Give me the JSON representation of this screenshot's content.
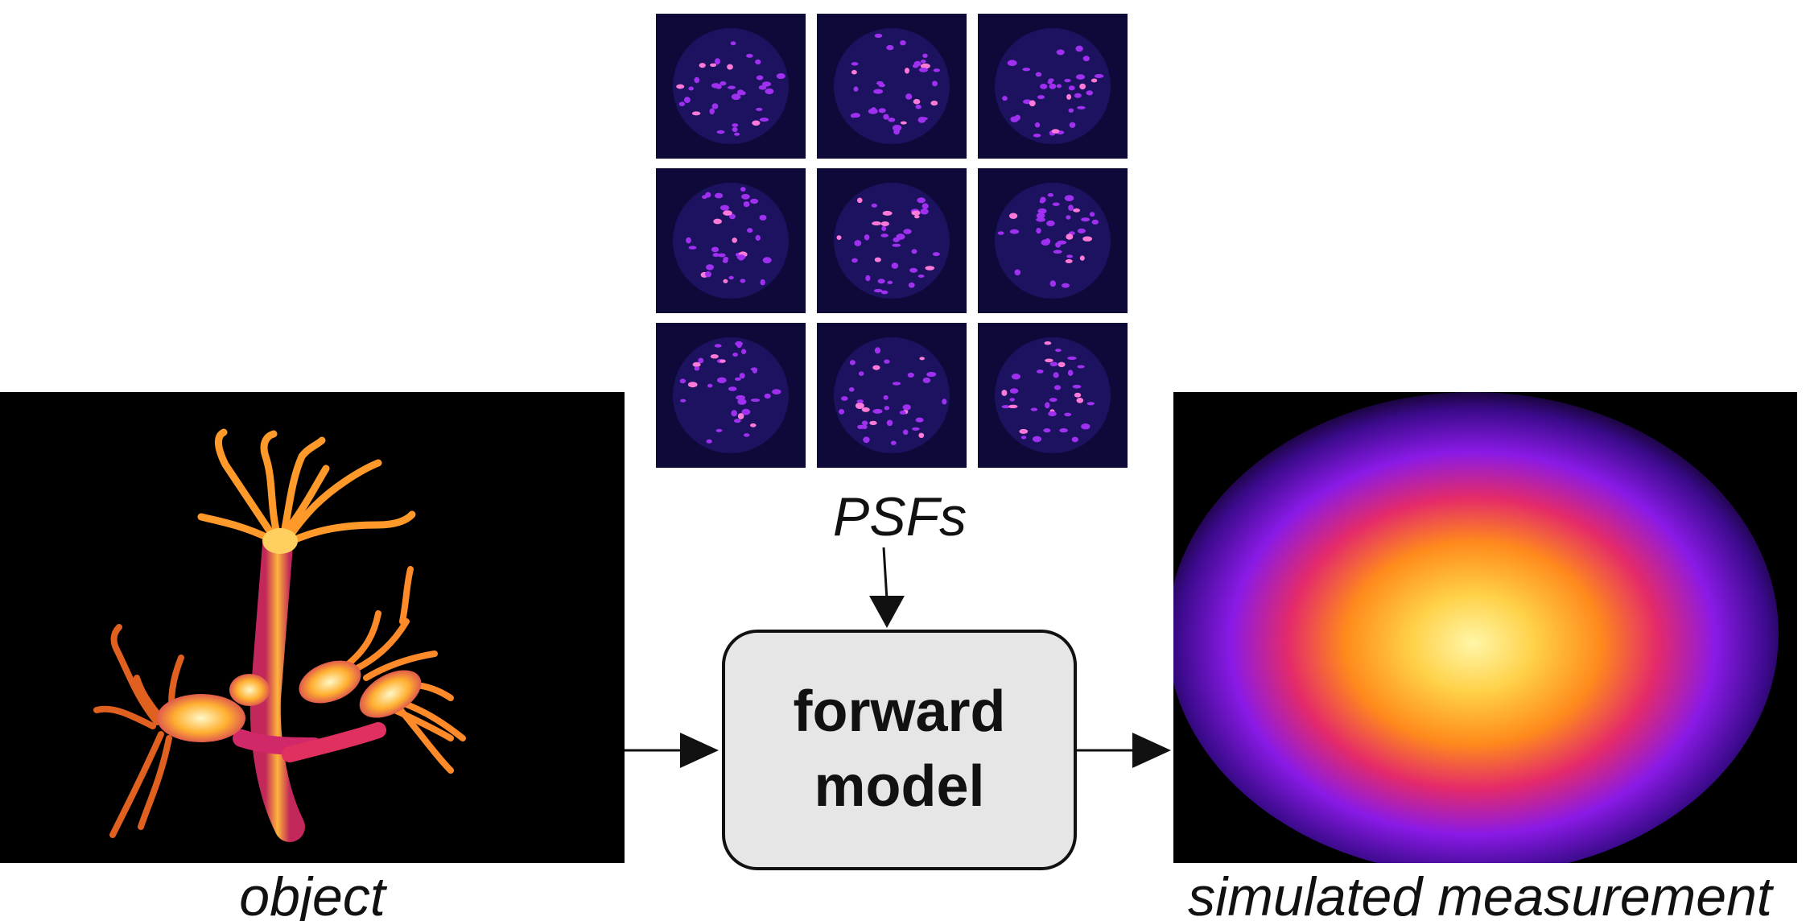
{
  "diagram": {
    "psf_caption": "PSFs",
    "object_caption": "object",
    "measurement_caption": "simulated measurement",
    "box": {
      "line1": "forward",
      "line2": "model"
    },
    "colors": {
      "line": "#111111",
      "box_fill": "#e6e6e6",
      "psf_bg": "#0d0a3a",
      "psf_spot": "#b030ff",
      "hot_1": "#fff4b0",
      "hot_2": "#ff9a1a",
      "hot_3": "#e0207a",
      "hot_4": "#6a1ad8"
    },
    "psf_tiles": 9,
    "icons": [
      "arrow-down-icon",
      "arrow-right-icon",
      "arrow-right-icon"
    ]
  }
}
